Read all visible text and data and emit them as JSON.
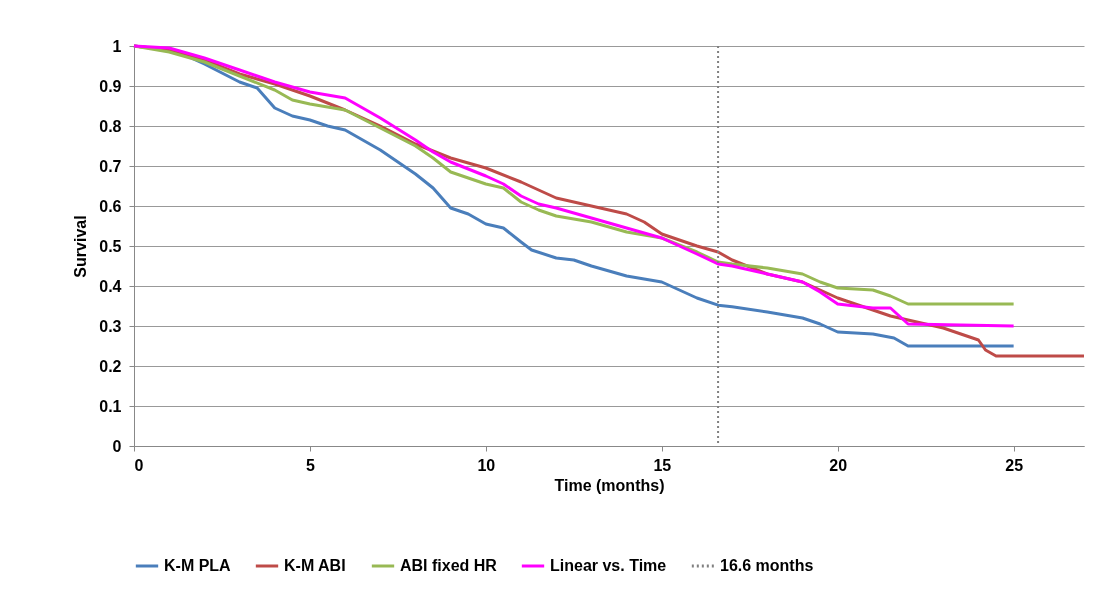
{
  "chart_data": {
    "type": "line",
    "xlabel": "Time (months)",
    "ylabel": "Survival",
    "xlim": [
      0,
      27
    ],
    "xticks": [
      0,
      5,
      10,
      15,
      20,
      25
    ],
    "ylim": [
      0,
      1
    ],
    "yticks": [
      0,
      0.1,
      0.2,
      0.3,
      0.4,
      0.5,
      0.6,
      0.7,
      0.8,
      0.9,
      1
    ],
    "grid": "y",
    "legend": "bottom",
    "marker": "none",
    "line_style": "solid",
    "series": [
      {
        "name": "K-M PLA",
        "color": "#4a7ebb",
        "x": [
          0,
          1,
          1.5,
          2,
          3,
          3.5,
          4,
          4.5,
          5,
          5.5,
          6,
          7,
          8,
          8.5,
          9,
          9.5,
          10,
          10.5,
          11,
          11.3,
          12,
          12.5,
          13,
          14,
          15,
          16,
          16.6,
          17,
          18,
          19,
          19.5,
          20,
          21,
          21.6,
          22,
          25
        ],
        "values": [
          1,
          0.99,
          0.975,
          0.955,
          0.91,
          0.895,
          0.845,
          0.825,
          0.815,
          0.8,
          0.79,
          0.74,
          0.68,
          0.645,
          0.595,
          0.58,
          0.555,
          0.545,
          0.51,
          0.49,
          0.47,
          0.465,
          0.45,
          0.425,
          0.41,
          0.37,
          0.352,
          0.348,
          0.335,
          0.32,
          0.305,
          0.285,
          0.28,
          0.27,
          0.25,
          0.25
        ]
      },
      {
        "name": "K-M ABI",
        "color": "#be4b48",
        "x": [
          0,
          1,
          2,
          3,
          4,
          5,
          6,
          7,
          8,
          9,
          10,
          11,
          12,
          13,
          14,
          14.5,
          15,
          16,
          16.6,
          17,
          18,
          19,
          20,
          21,
          21.5,
          22,
          23,
          23.5,
          24,
          24.2,
          24.5,
          27
        ],
        "values": [
          1,
          0.99,
          0.965,
          0.93,
          0.905,
          0.875,
          0.84,
          0.8,
          0.755,
          0.72,
          0.695,
          0.66,
          0.62,
          0.6,
          0.58,
          0.56,
          0.53,
          0.5,
          0.485,
          0.465,
          0.43,
          0.41,
          0.37,
          0.34,
          0.325,
          0.315,
          0.295,
          0.28,
          0.265,
          0.24,
          0.225,
          0.225
        ]
      },
      {
        "name": "ABI fixed HR",
        "color": "#98b954",
        "x": [
          0,
          1,
          2,
          3,
          4,
          4.5,
          5,
          6,
          7,
          8,
          8.5,
          9,
          10,
          10.5,
          11,
          11.5,
          12,
          13,
          14,
          15,
          16,
          16.6,
          17,
          18,
          19,
          19.5,
          20,
          21,
          21.5,
          22,
          25
        ],
        "values": [
          1,
          0.985,
          0.96,
          0.925,
          0.89,
          0.865,
          0.855,
          0.84,
          0.795,
          0.75,
          0.72,
          0.685,
          0.655,
          0.645,
          0.61,
          0.59,
          0.575,
          0.56,
          0.535,
          0.52,
          0.485,
          0.46,
          0.455,
          0.445,
          0.43,
          0.41,
          0.395,
          0.39,
          0.375,
          0.355,
          0.355
        ]
      },
      {
        "name": "Linear vs. Time",
        "color": "#ff00ff",
        "x": [
          0,
          1,
          2,
          3,
          4,
          5,
          6,
          7,
          8,
          8.5,
          9,
          10,
          10.5,
          11,
          11.5,
          12,
          13,
          14,
          15,
          16,
          16.6,
          17,
          18,
          19,
          19.5,
          20,
          21,
          21.5,
          22,
          25
        ],
        "values": [
          1,
          0.995,
          0.97,
          0.94,
          0.91,
          0.885,
          0.87,
          0.82,
          0.765,
          0.735,
          0.71,
          0.675,
          0.655,
          0.625,
          0.605,
          0.595,
          0.57,
          0.545,
          0.52,
          0.48,
          0.455,
          0.45,
          0.43,
          0.41,
          0.385,
          0.355,
          0.345,
          0.345,
          0.305,
          0.3
        ]
      }
    ],
    "ref_lines": [
      {
        "axis": "x",
        "value": 16.6,
        "label": "16.6 months",
        "color": "#808080",
        "line_style": "dotted"
      }
    ]
  }
}
